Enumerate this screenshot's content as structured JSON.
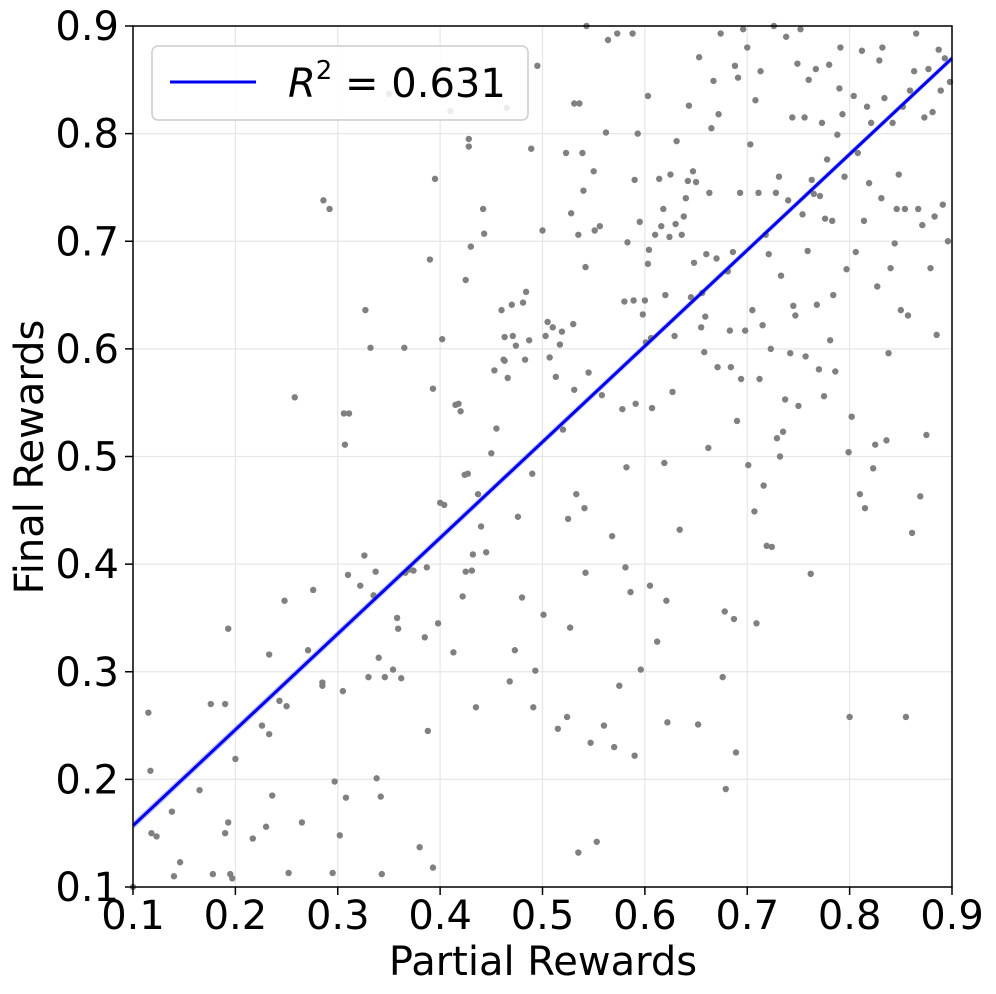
{
  "chart_data": {
    "type": "scatter",
    "title": "",
    "xlabel": "Partial Rewards",
    "ylabel": "Final Rewards",
    "xlim": [
      0.1,
      0.9
    ],
    "ylim": [
      0.1,
      0.9
    ],
    "grid": true,
    "legend_position": "top-left",
    "x_ticks": [
      "0.1",
      "0.2",
      "0.3",
      "0.4",
      "0.5",
      "0.6",
      "0.7",
      "0.8",
      "0.9"
    ],
    "y_ticks": [
      "0.1",
      "0.2",
      "0.3",
      "0.4",
      "0.5",
      "0.6",
      "0.7",
      "0.8",
      "0.9"
    ],
    "point_color": "#808080",
    "fit_line": {
      "label_prefix": "R",
      "label_exp": "2",
      "label_suffix": " = 0.631",
      "color": "#0000ee",
      "band_color": "#aaaaee",
      "x": [
        0.1,
        0.9
      ],
      "y": [
        0.157,
        0.87
      ]
    },
    "points": [
      [
        0.1,
        0.1
      ],
      [
        0.115,
        0.262
      ],
      [
        0.117,
        0.208
      ],
      [
        0.118,
        0.15
      ],
      [
        0.123,
        0.147
      ],
      [
        0.138,
        0.17
      ],
      [
        0.14,
        0.11
      ],
      [
        0.146,
        0.123
      ],
      [
        0.165,
        0.19
      ],
      [
        0.176,
        0.27
      ],
      [
        0.178,
        0.112
      ],
      [
        0.19,
        0.27
      ],
      [
        0.19,
        0.15
      ],
      [
        0.193,
        0.34
      ],
      [
        0.193,
        0.16
      ],
      [
        0.195,
        0.112
      ],
      [
        0.197,
        0.108
      ],
      [
        0.2,
        0.219
      ],
      [
        0.217,
        0.145
      ],
      [
        0.226,
        0.25
      ],
      [
        0.23,
        0.156
      ],
      [
        0.233,
        0.316
      ],
      [
        0.233,
        0.242
      ],
      [
        0.236,
        0.185
      ],
      [
        0.243,
        0.273
      ],
      [
        0.248,
        0.366
      ],
      [
        0.25,
        0.268
      ],
      [
        0.252,
        0.113
      ],
      [
        0.258,
        0.555
      ],
      [
        0.265,
        0.16
      ],
      [
        0.271,
        0.32
      ],
      [
        0.276,
        0.376
      ],
      [
        0.285,
        0.29
      ],
      [
        0.285,
        0.287
      ],
      [
        0.286,
        0.738
      ],
      [
        0.292,
        0.73
      ],
      [
        0.295,
        0.113
      ],
      [
        0.297,
        0.198
      ],
      [
        0.302,
        0.148
      ],
      [
        0.305,
        0.282
      ],
      [
        0.306,
        0.54
      ],
      [
        0.307,
        0.511
      ],
      [
        0.308,
        0.183
      ],
      [
        0.31,
        0.39
      ],
      [
        0.311,
        0.54
      ],
      [
        0.322,
        0.38
      ],
      [
        0.326,
        0.408
      ],
      [
        0.327,
        0.636
      ],
      [
        0.33,
        0.295
      ],
      [
        0.332,
        0.601
      ],
      [
        0.335,
        0.371
      ],
      [
        0.337,
        0.393
      ],
      [
        0.338,
        0.201
      ],
      [
        0.34,
        0.313
      ],
      [
        0.342,
        0.184
      ],
      [
        0.343,
        0.112
      ],
      [
        0.346,
        0.295
      ],
      [
        0.35,
        0.837
      ],
      [
        0.354,
        0.302
      ],
      [
        0.358,
        0.35
      ],
      [
        0.359,
        0.34
      ],
      [
        0.362,
        0.294
      ],
      [
        0.365,
        0.601
      ],
      [
        0.366,
        0.392
      ],
      [
        0.37,
        0.395
      ],
      [
        0.374,
        0.394
      ],
      [
        0.38,
        0.137
      ],
      [
        0.385,
        0.332
      ],
      [
        0.387,
        0.397
      ],
      [
        0.388,
        0.245
      ],
      [
        0.39,
        0.683
      ],
      [
        0.393,
        0.563
      ],
      [
        0.393,
        0.118
      ],
      [
        0.395,
        0.758
      ],
      [
        0.398,
        0.345
      ],
      [
        0.4,
        0.457
      ],
      [
        0.402,
        0.609
      ],
      [
        0.404,
        0.455
      ],
      [
        0.41,
        0.821
      ],
      [
        0.413,
        0.318
      ],
      [
        0.415,
        0.548
      ],
      [
        0.418,
        0.549
      ],
      [
        0.42,
        0.542
      ],
      [
        0.422,
        0.37
      ],
      [
        0.424,
        0.483
      ],
      [
        0.425,
        0.664
      ],
      [
        0.425,
        0.393
      ],
      [
        0.427,
        0.484
      ],
      [
        0.428,
        0.795
      ],
      [
        0.428,
        0.788
      ],
      [
        0.43,
        0.695
      ],
      [
        0.431,
        0.394
      ],
      [
        0.432,
        0.409
      ],
      [
        0.435,
        0.267
      ],
      [
        0.437,
        0.465
      ],
      [
        0.44,
        0.435
      ],
      [
        0.442,
        0.73
      ],
      [
        0.443,
        0.707
      ],
      [
        0.445,
        0.411
      ],
      [
        0.45,
        0.503
      ],
      [
        0.453,
        0.58
      ],
      [
        0.455,
        0.526
      ],
      [
        0.46,
        0.636
      ],
      [
        0.462,
        0.59
      ],
      [
        0.463,
        0.611
      ],
      [
        0.463,
        0.589
      ],
      [
        0.465,
        0.824
      ],
      [
        0.466,
        0.573
      ],
      [
        0.468,
        0.291
      ],
      [
        0.47,
        0.641
      ],
      [
        0.471,
        0.612
      ],
      [
        0.473,
        0.32
      ],
      [
        0.474,
        0.603
      ],
      [
        0.476,
        0.444
      ],
      [
        0.48,
        0.369
      ],
      [
        0.481,
        0.643
      ],
      [
        0.483,
        0.59
      ],
      [
        0.484,
        0.653
      ],
      [
        0.487,
        0.608
      ],
      [
        0.489,
        0.786
      ],
      [
        0.49,
        0.484
      ],
      [
        0.491,
        0.267
      ],
      [
        0.493,
        0.301
      ],
      [
        0.495,
        0.863
      ],
      [
        0.5,
        0.71
      ],
      [
        0.501,
        0.353
      ],
      [
        0.503,
        0.612
      ],
      [
        0.505,
        0.625
      ],
      [
        0.507,
        0.592
      ],
      [
        0.51,
        0.62
      ],
      [
        0.513,
        0.574
      ],
      [
        0.515,
        0.247
      ],
      [
        0.517,
        0.604
      ],
      [
        0.519,
        0.616
      ],
      [
        0.52,
        0.525
      ],
      [
        0.523,
        0.782
      ],
      [
        0.524,
        0.258
      ],
      [
        0.525,
        0.442
      ],
      [
        0.527,
        0.341
      ],
      [
        0.528,
        0.726
      ],
      [
        0.53,
        0.623
      ],
      [
        0.531,
        0.562
      ],
      [
        0.531,
        0.828
      ],
      [
        0.533,
        0.465
      ],
      [
        0.535,
        0.706
      ],
      [
        0.535,
        0.132
      ],
      [
        0.536,
        0.828
      ],
      [
        0.539,
        0.782
      ],
      [
        0.54,
        0.747
      ],
      [
        0.541,
        0.452
      ],
      [
        0.542,
        0.676
      ],
      [
        0.542,
        0.392
      ],
      [
        0.543,
        0.9
      ],
      [
        0.545,
        0.578
      ],
      [
        0.547,
        0.234
      ],
      [
        0.55,
        0.765
      ],
      [
        0.551,
        0.71
      ],
      [
        0.553,
        0.142
      ],
      [
        0.556,
        0.714
      ],
      [
        0.558,
        0.557
      ],
      [
        0.56,
        0.25
      ],
      [
        0.562,
        0.801
      ],
      [
        0.564,
        0.887
      ],
      [
        0.568,
        0.426
      ],
      [
        0.57,
        0.23
      ],
      [
        0.573,
        0.893
      ],
      [
        0.575,
        0.287
      ],
      [
        0.578,
        0.544
      ],
      [
        0.58,
        0.644
      ],
      [
        0.581,
        0.397
      ],
      [
        0.582,
        0.49
      ],
      [
        0.583,
        0.699
      ],
      [
        0.586,
        0.374
      ],
      [
        0.588,
        0.893
      ],
      [
        0.589,
        0.645
      ],
      [
        0.59,
        0.222
      ],
      [
        0.59,
        0.757
      ],
      [
        0.591,
        0.549
      ],
      [
        0.593,
        0.8
      ],
      [
        0.595,
        0.718
      ],
      [
        0.596,
        0.302
      ],
      [
        0.598,
        0.632
      ],
      [
        0.6,
        0.645
      ],
      [
        0.601,
        0.606
      ],
      [
        0.603,
        0.835
      ],
      [
        0.603,
        0.679
      ],
      [
        0.604,
        0.692
      ],
      [
        0.605,
        0.38
      ],
      [
        0.606,
        0.61
      ],
      [
        0.607,
        0.545
      ],
      [
        0.61,
        0.706
      ],
      [
        0.612,
        0.328
      ],
      [
        0.614,
        0.758
      ],
      [
        0.616,
        0.714
      ],
      [
        0.618,
        0.73
      ],
      [
        0.619,
        0.494
      ],
      [
        0.62,
        0.65
      ],
      [
        0.621,
        0.366
      ],
      [
        0.622,
        0.253
      ],
      [
        0.624,
        0.704
      ],
      [
        0.625,
        0.762
      ],
      [
        0.627,
        0.56
      ],
      [
        0.629,
        0.612
      ],
      [
        0.63,
        0.716
      ],
      [
        0.631,
        0.793
      ],
      [
        0.634,
        0.432
      ],
      [
        0.636,
        0.706
      ],
      [
        0.638,
        0.723
      ],
      [
        0.64,
        0.74
      ],
      [
        0.642,
        0.756
      ],
      [
        0.643,
        0.826
      ],
      [
        0.645,
        0.648
      ],
      [
        0.647,
        0.765
      ],
      [
        0.648,
        0.68
      ],
      [
        0.65,
        0.755
      ],
      [
        0.652,
        0.251
      ],
      [
        0.653,
        0.871
      ],
      [
        0.655,
        0.62
      ],
      [
        0.656,
        0.652
      ],
      [
        0.658,
        0.597
      ],
      [
        0.659,
        0.63
      ],
      [
        0.66,
        0.688
      ],
      [
        0.662,
        0.508
      ],
      [
        0.663,
        0.745
      ],
      [
        0.665,
        0.805
      ],
      [
        0.667,
        0.849
      ],
      [
        0.67,
        0.684
      ],
      [
        0.671,
        0.583
      ],
      [
        0.672,
        0.818
      ],
      [
        0.674,
        0.893
      ],
      [
        0.676,
        0.295
      ],
      [
        0.678,
        0.356
      ],
      [
        0.679,
        0.191
      ],
      [
        0.681,
        0.672
      ],
      [
        0.683,
        0.617
      ],
      [
        0.684,
        0.583
      ],
      [
        0.686,
        0.69
      ],
      [
        0.687,
        0.349
      ],
      [
        0.688,
        0.863
      ],
      [
        0.689,
        0.225
      ],
      [
        0.69,
        0.533
      ],
      [
        0.691,
        0.852
      ],
      [
        0.693,
        0.745
      ],
      [
        0.694,
        0.572
      ],
      [
        0.696,
        0.897
      ],
      [
        0.698,
        0.617
      ],
      [
        0.7,
        0.88
      ],
      [
        0.701,
        0.492
      ],
      [
        0.703,
        0.79
      ],
      [
        0.705,
        0.636
      ],
      [
        0.707,
        0.449
      ],
      [
        0.708,
        0.831
      ],
      [
        0.709,
        0.345
      ],
      [
        0.711,
        0.745
      ],
      [
        0.712,
        0.572
      ],
      [
        0.713,
        0.858
      ],
      [
        0.715,
        0.622
      ],
      [
        0.716,
        0.473
      ],
      [
        0.718,
        0.706
      ],
      [
        0.719,
        0.417
      ],
      [
        0.721,
        0.688
      ],
      [
        0.723,
        0.6
      ],
      [
        0.724,
        0.416
      ],
      [
        0.726,
        0.9
      ],
      [
        0.728,
        0.745
      ],
      [
        0.729,
        0.517
      ],
      [
        0.731,
        0.76
      ],
      [
        0.732,
        0.5
      ],
      [
        0.733,
        0.668
      ],
      [
        0.735,
        0.523
      ],
      [
        0.737,
        0.553
      ],
      [
        0.738,
        0.89
      ],
      [
        0.74,
        0.738
      ],
      [
        0.742,
        0.596
      ],
      [
        0.744,
        0.815
      ],
      [
        0.745,
        0.64
      ],
      [
        0.747,
        0.631
      ],
      [
        0.749,
        0.865
      ],
      [
        0.75,
        0.547
      ],
      [
        0.752,
        0.897
      ],
      [
        0.754,
        0.725
      ],
      [
        0.756,
        0.815
      ],
      [
        0.757,
        0.593
      ],
      [
        0.759,
        0.691
      ],
      [
        0.76,
        0.85
      ],
      [
        0.762,
        0.391
      ],
      [
        0.763,
        0.757
      ],
      [
        0.765,
        0.744
      ],
      [
        0.767,
        0.86
      ],
      [
        0.768,
        0.641
      ],
      [
        0.77,
        0.581
      ],
      [
        0.771,
        0.742
      ],
      [
        0.773,
        0.81
      ],
      [
        0.775,
        0.556
      ],
      [
        0.776,
        0.721
      ],
      [
        0.778,
        0.776
      ],
      [
        0.78,
        0.864
      ],
      [
        0.781,
        0.608
      ],
      [
        0.783,
        0.719
      ],
      [
        0.784,
        0.65
      ],
      [
        0.786,
        0.579
      ],
      [
        0.788,
        0.799
      ],
      [
        0.79,
        0.842
      ],
      [
        0.791,
        0.88
      ],
      [
        0.793,
        0.818
      ],
      [
        0.795,
        0.76
      ],
      [
        0.797,
        0.674
      ],
      [
        0.799,
        0.504
      ],
      [
        0.8,
        0.258
      ],
      [
        0.802,
        0.537
      ],
      [
        0.804,
        0.835
      ],
      [
        0.806,
        0.69
      ],
      [
        0.808,
        0.782
      ],
      [
        0.81,
        0.465
      ],
      [
        0.812,
        0.877
      ],
      [
        0.814,
        0.719
      ],
      [
        0.815,
        0.452
      ],
      [
        0.817,
        0.825
      ],
      [
        0.819,
        0.754
      ],
      [
        0.821,
        0.81
      ],
      [
        0.823,
        0.489
      ],
      [
        0.825,
        0.511
      ],
      [
        0.827,
        0.658
      ],
      [
        0.829,
        0.868
      ],
      [
        0.831,
        0.74
      ],
      [
        0.832,
        0.88
      ],
      [
        0.834,
        0.833
      ],
      [
        0.836,
        0.515
      ],
      [
        0.838,
        0.596
      ],
      [
        0.84,
        0.675
      ],
      [
        0.842,
        0.81
      ],
      [
        0.844,
        0.698
      ],
      [
        0.846,
        0.73
      ],
      [
        0.848,
        0.762
      ],
      [
        0.85,
        0.636
      ],
      [
        0.852,
        0.825
      ],
      [
        0.854,
        0.73
      ],
      [
        0.855,
        0.258
      ],
      [
        0.857,
        0.631
      ],
      [
        0.859,
        0.84
      ],
      [
        0.861,
        0.429
      ],
      [
        0.863,
        0.858
      ],
      [
        0.865,
        0.893
      ],
      [
        0.867,
        0.73
      ],
      [
        0.869,
        0.463
      ],
      [
        0.871,
        0.715
      ],
      [
        0.873,
        0.815
      ],
      [
        0.875,
        0.52
      ],
      [
        0.877,
        0.86
      ],
      [
        0.879,
        0.675
      ],
      [
        0.881,
        0.82
      ],
      [
        0.883,
        0.723
      ],
      [
        0.885,
        0.613
      ],
      [
        0.887,
        0.878
      ],
      [
        0.889,
        0.84
      ],
      [
        0.891,
        0.734
      ],
      [
        0.893,
        0.87
      ],
      [
        0.896,
        0.7
      ],
      [
        0.898,
        0.848
      ]
    ]
  }
}
